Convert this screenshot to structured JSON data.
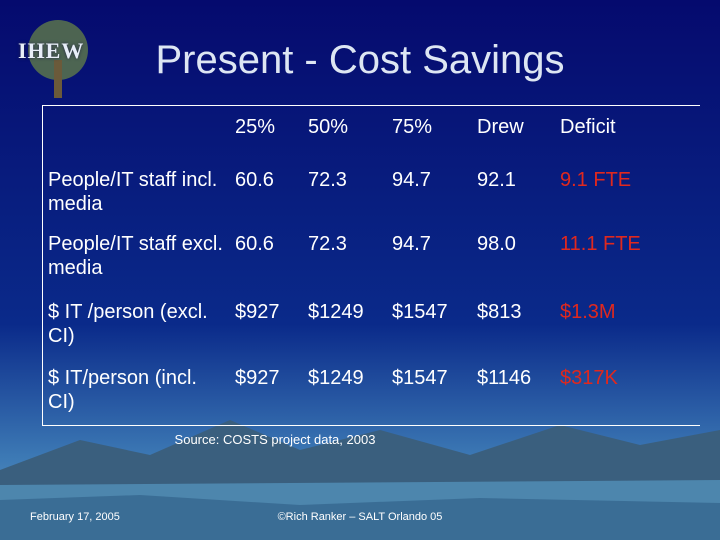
{
  "logo": "IHEW",
  "title": "Present - Cost Savings",
  "table": {
    "header": [
      "25%",
      "50%",
      "75%",
      "Drew",
      "Deficit"
    ],
    "rows": [
      [
        "People/IT staff incl. media",
        "60.6",
        "72.3",
        "94.7",
        "92.1",
        "9.1 FTE"
      ],
      [
        "People/IT staff excl. media",
        "60.6",
        "72.3",
        "94.7",
        "98.0",
        "11.1 FTE"
      ],
      [
        "$ IT /person (excl. CI)",
        "$927",
        "$1249",
        "$1547",
        "$813",
        "$1.3M"
      ],
      [
        "$ IT/person (incl. CI)",
        "$927",
        "$1249",
        "$1547",
        "$1146",
        "$317K"
      ]
    ]
  },
  "source": "Source:  COSTS project data, 2003",
  "footer": {
    "date": "February 17, 2005",
    "credit": "©Rich Ranker – SALT Orlando 05"
  }
}
